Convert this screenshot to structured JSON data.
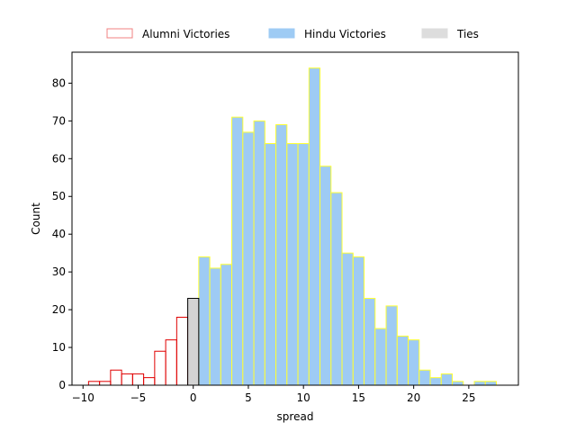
{
  "chart_data": {
    "type": "bar",
    "xlabel": "spread",
    "ylabel": "Count",
    "xlim": [
      -11,
      29.5
    ],
    "ylim": [
      0,
      88.2
    ],
    "xticks": [
      -10,
      -5,
      0,
      5,
      10,
      15,
      20,
      25
    ],
    "yticks": [
      0,
      10,
      20,
      30,
      40,
      50,
      60,
      70,
      80
    ],
    "bin_width": 1,
    "grid": false,
    "legend_placement": "top-center, outside plot",
    "series": [
      {
        "name": "Alumni Victories",
        "face_color": "none",
        "edge_color": "#e00000",
        "legend_edge_color": "#f08080",
        "bins": [
          -9.5,
          -8.5,
          -7.5,
          -6.5,
          -5.5,
          -4.5,
          -3.5,
          -2.5,
          -1.5
        ],
        "values": [
          1,
          1,
          4,
          3,
          3,
          2,
          9,
          12,
          18
        ]
      },
      {
        "name": "Hindu Victories",
        "face_color": "#9ecbf4",
        "edge_color": "#ffff33",
        "bins": [
          0.5,
          1.5,
          2.5,
          3.5,
          4.5,
          5.5,
          6.5,
          7.5,
          8.5,
          9.5,
          10.5,
          11.5,
          12.5,
          13.5,
          14.5,
          15.5,
          16.5,
          17.5,
          18.5,
          19.5,
          20.5,
          21.5,
          22.5,
          23.5,
          24.5,
          25.5,
          26.5
        ],
        "values": [
          34,
          31,
          32,
          71,
          67,
          70,
          64,
          69,
          64,
          64,
          84,
          58,
          51,
          35,
          34,
          23,
          15,
          21,
          13,
          12,
          4,
          2,
          3,
          1,
          0,
          1,
          1
        ]
      },
      {
        "name": "Ties",
        "face_color": "#d3d3d3",
        "edge_color": "#000000",
        "legend_face_color": "#dddddd",
        "bins": [
          -0.5
        ],
        "values": [
          23
        ]
      }
    ]
  }
}
